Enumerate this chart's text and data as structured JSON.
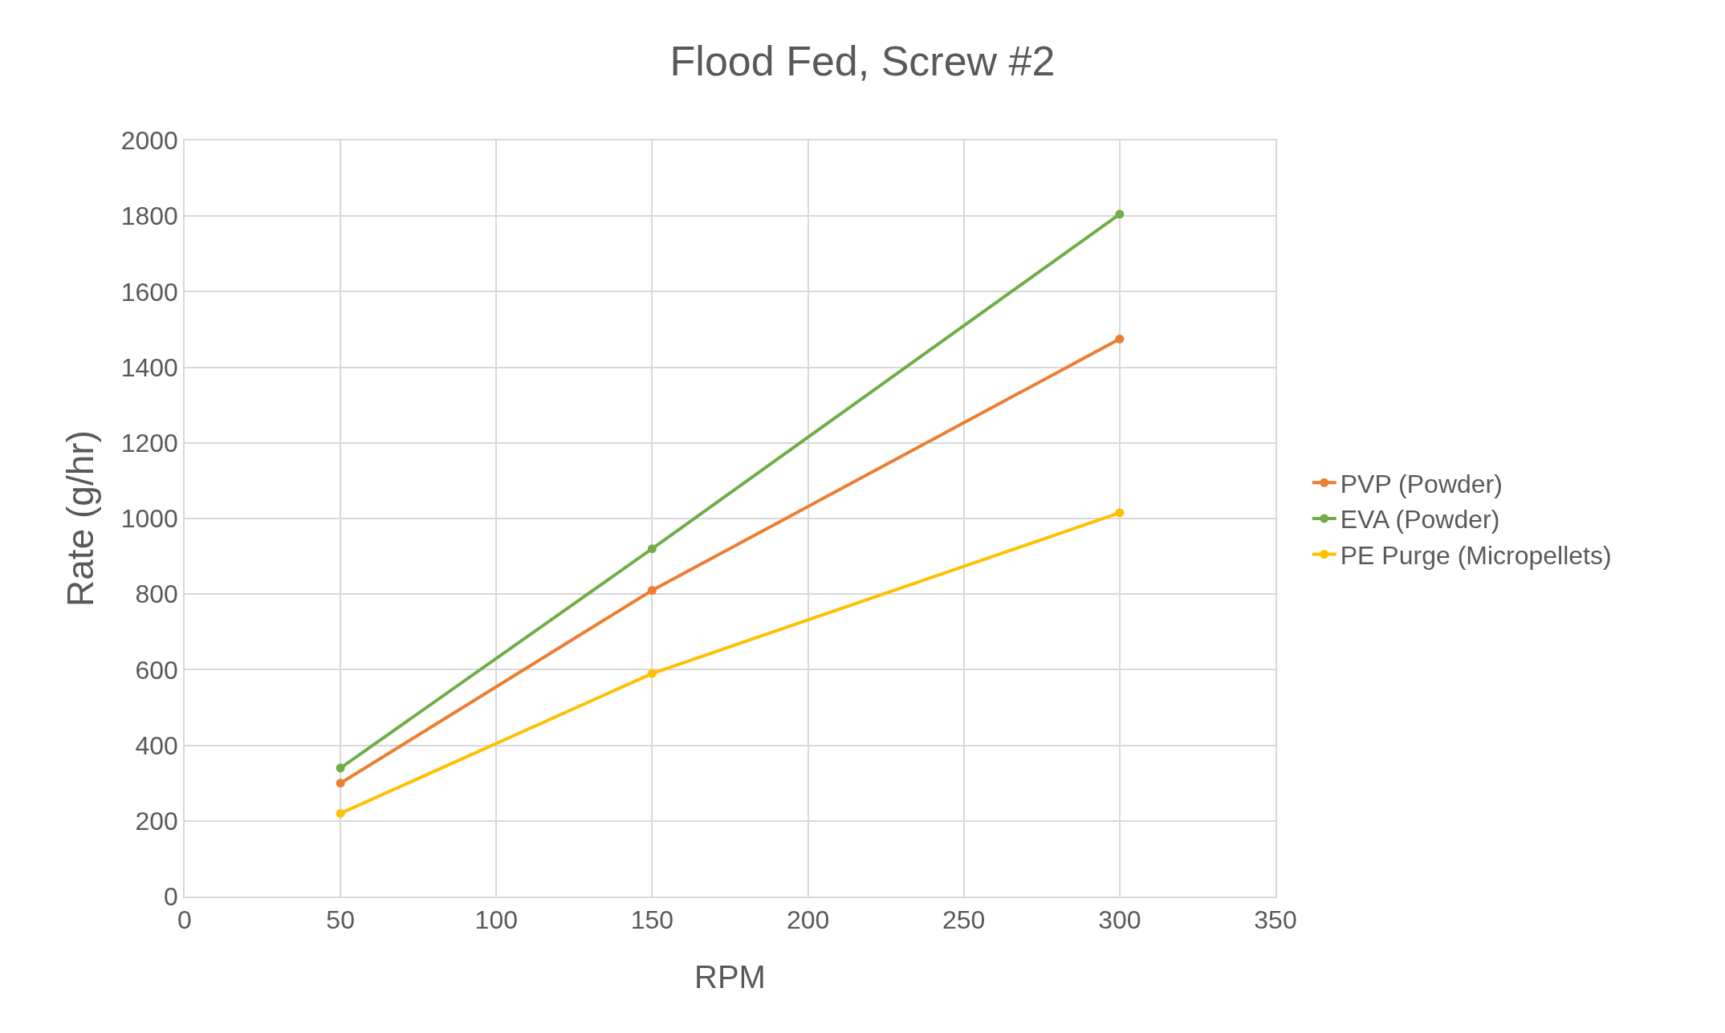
{
  "chart_data": {
    "type": "line",
    "title": "Flood Fed, Screw #2",
    "xlabel": "RPM",
    "ylabel": "Rate (g/hr)",
    "x": [
      50,
      150,
      300
    ],
    "series": [
      {
        "name": "PVP (Powder)",
        "color": "#ed7d31",
        "values": [
          300,
          810,
          1475
        ]
      },
      {
        "name": "EVA (Powder)",
        "color": "#70ad47",
        "values": [
          340,
          920,
          1805
        ]
      },
      {
        "name": "PE Purge (Micropellets)",
        "color": "#ffc000",
        "values": [
          220,
          590,
          1015
        ]
      }
    ],
    "xlim": [
      0,
      350
    ],
    "xticks": [
      0,
      50,
      100,
      150,
      200,
      250,
      300,
      350
    ],
    "ylim": [
      0,
      2000
    ],
    "yticks": [
      0,
      200,
      400,
      600,
      800,
      1000,
      1200,
      1400,
      1600,
      1800,
      2000
    ],
    "grid": true,
    "legend": "right",
    "marker": "circle",
    "line_style": "solid"
  }
}
